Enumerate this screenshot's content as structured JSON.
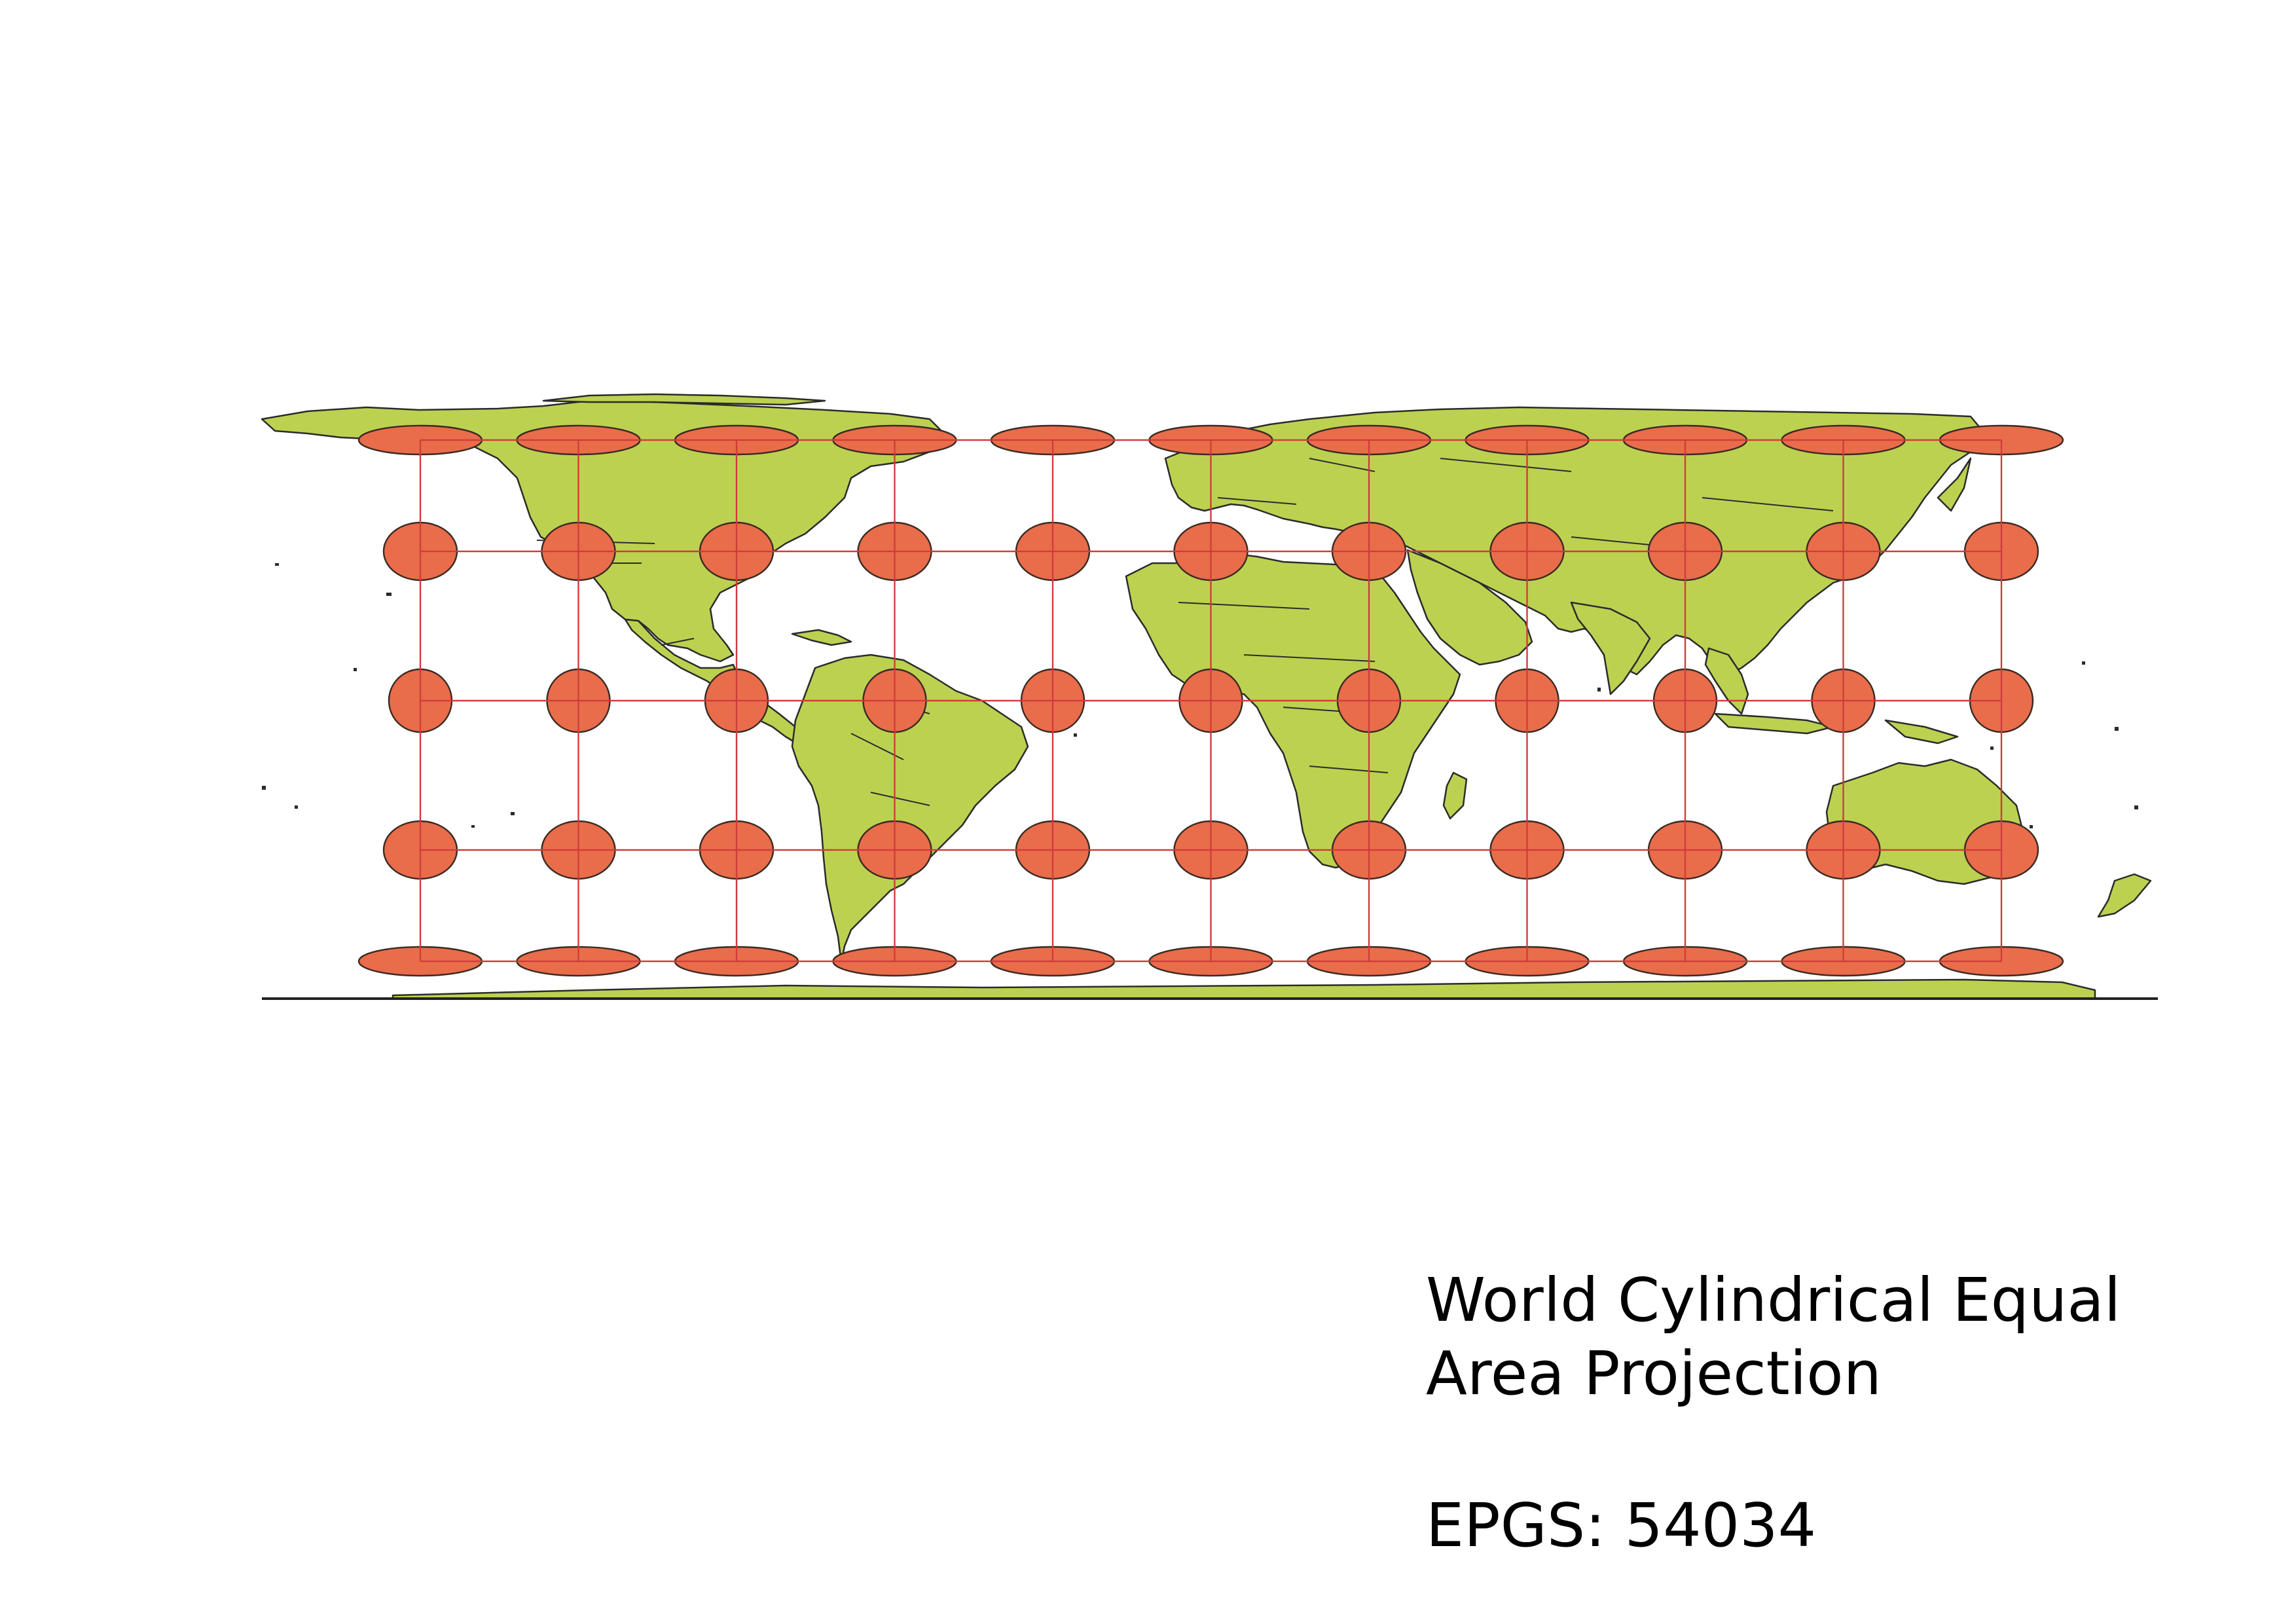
{
  "map": {
    "projection": "World Cylindrical Equal Area",
    "land_color": "#bdd151",
    "outline_color": "#2b2b2b",
    "graticule_color": "#cf3b3b",
    "tissot_color": "#e96c4b",
    "tissot_rows": 5,
    "tissot_cols": 11,
    "feature": "tissot-indicatrix-ellipses"
  },
  "caption": {
    "line1": "World Cylindrical Equal",
    "line2": "Area Projection",
    "code": "EPGS: 54034"
  }
}
